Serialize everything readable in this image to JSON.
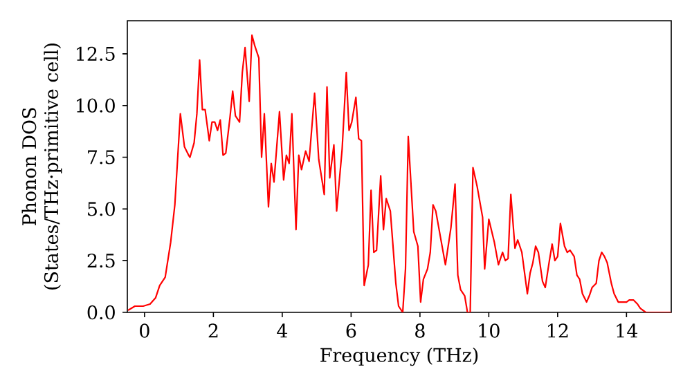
{
  "chart_data": {
    "type": "line",
    "xlabel": "Frequency (THz)",
    "ylabel": "Phonon DOS\n(States/THz·primitive cell)",
    "xlim": [
      -0.5,
      15.3
    ],
    "ylim": [
      0,
      14.1
    ],
    "xticks": [
      0,
      2,
      4,
      6,
      8,
      10,
      12,
      14
    ],
    "yticks": [
      {
        "value": 0,
        "label": "0.0"
      },
      {
        "value": 2.5,
        "label": "2.5"
      },
      {
        "value": 5,
        "label": "5.0"
      },
      {
        "value": 7.5,
        "label": "7.5"
      },
      {
        "value": 10,
        "label": "10.0"
      },
      {
        "value": 12.5,
        "label": "12.5"
      }
    ],
    "line_style": "solid",
    "marker": "none",
    "series": [
      {
        "color": "#ff0000",
        "x": [
          -0.48,
          -0.28,
          -0.04,
          0.16,
          0.32,
          0.44,
          0.6,
          0.76,
          0.88,
          0.96,
          1.04,
          1.16,
          1.28,
          1.32,
          1.44,
          1.52,
          1.6,
          1.68,
          1.76,
          1.88,
          1.96,
          2.04,
          2.12,
          2.2,
          2.28,
          2.36,
          2.48,
          2.56,
          2.64,
          2.76,
          2.84,
          2.92,
          3.04,
          3.12,
          3.2,
          3.32,
          3.4,
          3.48,
          3.6,
          3.68,
          3.76,
          3.92,
          4.04,
          4.12,
          4.2,
          4.28,
          4.4,
          4.48,
          4.56,
          4.68,
          4.78,
          4.94,
          5.06,
          5.22,
          5.3,
          5.38,
          5.5,
          5.58,
          5.74,
          5.86,
          5.94,
          6.02,
          6.14,
          6.22,
          6.3,
          6.38,
          6.5,
          6.58,
          6.66,
          6.74,
          6.86,
          6.94,
          7.02,
          7.14,
          7.3,
          7.38,
          7.5,
          7.58,
          7.66,
          7.82,
          7.94,
          8.02,
          8.1,
          8.22,
          8.3,
          8.38,
          8.46,
          8.74,
          8.9,
          9.02,
          9.1,
          9.18,
          9.3,
          9.38,
          9.46,
          9.54,
          9.66,
          9.82,
          9.88,
          10.0,
          10.16,
          10.28,
          10.4,
          10.48,
          10.56,
          10.64,
          10.76,
          10.84,
          10.96,
          11.12,
          11.2,
          11.28,
          11.36,
          11.44,
          11.56,
          11.64,
          11.76,
          11.84,
          11.92,
          12.0,
          12.08,
          12.2,
          12.28,
          12.36,
          12.48,
          12.56,
          12.64,
          12.72,
          12.84,
          12.92,
          13.0,
          13.12,
          13.2,
          13.28,
          13.36,
          13.44,
          13.56,
          13.64,
          13.76,
          13.88,
          14.0,
          14.08,
          14.2,
          14.32,
          14.4,
          14.56,
          15.3
        ],
        "values": [
          0.1,
          0.3,
          0.3,
          0.4,
          0.7,
          1.3,
          1.7,
          3.4,
          5.2,
          7.4,
          9.6,
          8.0,
          7.6,
          7.5,
          8.2,
          9.6,
          12.2,
          9.8,
          9.8,
          8.3,
          9.2,
          9.2,
          8.8,
          9.3,
          7.6,
          7.7,
          9.4,
          10.7,
          9.5,
          9.2,
          11.6,
          12.8,
          10.2,
          13.4,
          12.9,
          12.3,
          7.5,
          9.6,
          5.1,
          7.2,
          6.3,
          9.7,
          6.4,
          7.6,
          7.2,
          9.6,
          4.0,
          7.6,
          6.9,
          7.8,
          7.3,
          10.6,
          7.4,
          5.7,
          10.9,
          6.5,
          8.1,
          4.9,
          7.9,
          11.6,
          8.8,
          9.2,
          10.4,
          8.4,
          8.3,
          1.3,
          2.3,
          5.9,
          2.9,
          3.0,
          6.6,
          4.0,
          5.5,
          4.9,
          1.4,
          0.3,
          0,
          2.1,
          8.5,
          3.9,
          3.2,
          0.5,
          1.6,
          2.1,
          2.9,
          5.2,
          4.9,
          2.3,
          4.1,
          6.2,
          1.8,
          1.1,
          0.8,
          0,
          0,
          7.0,
          6.1,
          4.6,
          2.1,
          4.5,
          3.4,
          2.3,
          2.9,
          2.5,
          2.6,
          5.7,
          3.1,
          3.5,
          2.9,
          0.9,
          1.9,
          2.4,
          3.2,
          2.9,
          1.5,
          1.2,
          2.5,
          3.3,
          2.5,
          2.7,
          4.3,
          3.2,
          2.9,
          3.0,
          2.7,
          1.8,
          1.6,
          0.9,
          0.5,
          0.8,
          1.2,
          1.4,
          2.5,
          2.9,
          2.7,
          2.4,
          1.4,
          0.9,
          0.5,
          0.5,
          0.5,
          0.6,
          0.6,
          0.4,
          0.2,
          0,
          0
        ]
      }
    ]
  }
}
